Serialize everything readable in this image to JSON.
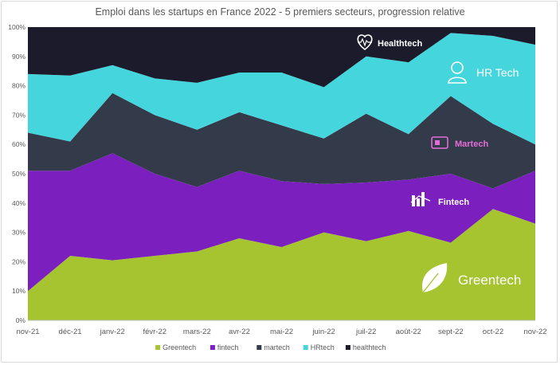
{
  "chart_data": {
    "type": "area",
    "stacked": true,
    "normalized": true,
    "title": "Emploi dans les startups en France 2022 - 5 premiers secteurs, progression relative",
    "categories": [
      "nov-21",
      "déc-21",
      "janv-22",
      "févr-22",
      "mars-22",
      "avr-22",
      "mai-22",
      "juin-22",
      "juil-22",
      "août-22",
      "sept-22",
      "oct-22",
      "nov-22"
    ],
    "ylim": [
      0,
      100
    ],
    "yticks": [
      "0%",
      "10%",
      "20%",
      "30%",
      "40%",
      "50%",
      "60%",
      "70%",
      "80%",
      "90%",
      "100%"
    ],
    "series": [
      {
        "name": "Greentech",
        "color": "#a5c430",
        "values": [
          10,
          22,
          20.5,
          22,
          23.5,
          28,
          25,
          30,
          27,
          30.5,
          26.5,
          38,
          33
        ]
      },
      {
        "name": "fintech",
        "color": "#7b1fbf",
        "values": [
          41,
          29,
          36.5,
          28,
          22,
          23,
          22.5,
          16.5,
          20,
          17.5,
          23.5,
          7,
          18
        ]
      },
      {
        "name": "martech",
        "color": "#333b4b",
        "values": [
          13,
          10,
          20.5,
          20,
          19.5,
          20,
          19,
          15.5,
          23.5,
          15.5,
          26.5,
          22,
          9
        ]
      },
      {
        "name": "HRtech",
        "color": "#45d6dd",
        "values": [
          20,
          22.5,
          9.5,
          12.5,
          16,
          13.5,
          18,
          17.5,
          19.5,
          24.5,
          21.5,
          30,
          34
        ]
      },
      {
        "name": "healthtech",
        "color": "#1c1b2b",
        "values": [
          16,
          16.5,
          13,
          17.5,
          19,
          15.5,
          15.5,
          20.5,
          10,
          12,
          2,
          3,
          6
        ]
      }
    ],
    "grid": false,
    "legend_position": "bottom",
    "annotations": [
      "Healthtech",
      "HR Tech",
      "Martech",
      "Fintech",
      "Greentech"
    ]
  }
}
